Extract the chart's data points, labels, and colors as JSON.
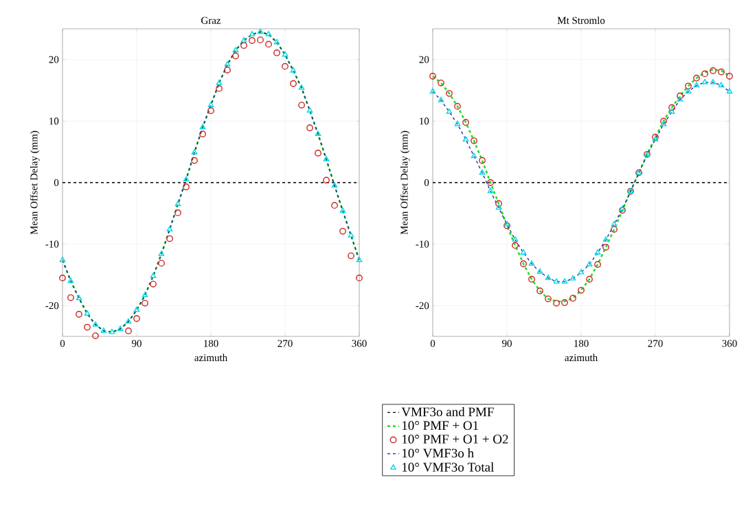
{
  "chart_data": [
    {
      "type": "line",
      "title": "Graz",
      "xlabel": "azimuth",
      "ylabel": "Mean Offset Delay (mm)",
      "xlim": [
        0,
        360
      ],
      "xticks": [
        0,
        90,
        180,
        270,
        360
      ],
      "ylim": [
        -25,
        25
      ],
      "yticks": [
        -20,
        -10,
        0,
        10,
        20
      ],
      "grid": true,
      "legend": "bottom",
      "ref_lines": [
        {
          "axis": "y",
          "value": 0,
          "label": "VMF3o and PMF",
          "color": "#000000",
          "line_style": "dashed"
        }
      ],
      "x": [
        0,
        10,
        20,
        30,
        40,
        50,
        60,
        70,
        80,
        90,
        100,
        110,
        120,
        130,
        140,
        150,
        160,
        170,
        180,
        190,
        200,
        210,
        220,
        230,
        240,
        250,
        260,
        270,
        280,
        290,
        300,
        310,
        320,
        330,
        340,
        350,
        360
      ],
      "series": [
        {
          "name": "10° PMF + O1",
          "line_style": "dashed",
          "color": "#22dd22",
          "values": [
            -12.6,
            -16.0,
            -18.8,
            -21.3,
            -23.1,
            -24.1,
            -24.3,
            -23.8,
            -22.6,
            -20.7,
            -18.3,
            -15.2,
            -11.6,
            -7.6,
            -3.5,
            0.5,
            4.9,
            9.0,
            12.6,
            16.2,
            19.2,
            21.5,
            23.1,
            24.1,
            24.5,
            24.1,
            22.8,
            20.8,
            18.2,
            15.4,
            11.7,
            7.9,
            3.8,
            -0.5,
            -4.6,
            -8.6,
            -12.6
          ]
        },
        {
          "name": "10° PMF + O1 + O2",
          "type": "scatter",
          "marker": "circle",
          "color": "#cc2222",
          "values": [
            -15.5,
            -18.7,
            -21.4,
            -23.5,
            -24.9,
            null,
            null,
            null,
            -24.1,
            -22.1,
            -19.6,
            -16.5,
            -13.1,
            -9.1,
            -4.9,
            -0.7,
            3.6,
            7.9,
            11.7,
            15.3,
            18.3,
            20.6,
            22.3,
            23.1,
            23.2,
            22.5,
            21.1,
            18.9,
            16.1,
            12.6,
            8.9,
            4.8,
            0.4,
            -3.7,
            -7.9,
            -11.9,
            -15.5
          ]
        },
        {
          "name": "10° VMF3o h",
          "line_style": "dashed",
          "color": "#1a1aa0",
          "values": [
            -12.6,
            -16.0,
            -18.8,
            -21.3,
            -23.1,
            -24.1,
            -24.3,
            -23.8,
            -22.6,
            -20.7,
            -18.3,
            -15.2,
            -11.6,
            -7.6,
            -3.5,
            0.5,
            4.9,
            9.0,
            12.6,
            16.2,
            19.2,
            21.5,
            23.1,
            24.1,
            24.5,
            24.1,
            22.8,
            20.8,
            18.2,
            15.4,
            11.7,
            7.9,
            3.8,
            -0.5,
            -4.6,
            -8.6,
            -12.6
          ]
        },
        {
          "name": "10° VMF3o Total",
          "type": "scatter",
          "marker": "triangle",
          "color": "#00d8e8",
          "values": [
            -12.6,
            -16.0,
            -18.8,
            -21.3,
            -23.1,
            -24.1,
            -24.3,
            -23.8,
            -22.6,
            -20.7,
            -18.3,
            -15.2,
            -11.6,
            -7.6,
            -3.5,
            0.5,
            4.9,
            9.0,
            12.6,
            16.2,
            19.2,
            21.5,
            23.1,
            24.1,
            24.5,
            24.1,
            22.8,
            20.8,
            18.2,
            15.4,
            11.7,
            7.9,
            3.8,
            -0.5,
            -4.6,
            -8.6,
            -12.6
          ]
        }
      ]
    },
    {
      "type": "line",
      "title": "Mt Stromlo",
      "xlabel": "azimuth",
      "ylabel": "Mean Offset Delay (mm)",
      "xlim": [
        0,
        360
      ],
      "xticks": [
        0,
        90,
        180,
        270,
        360
      ],
      "ylim": [
        -25,
        25
      ],
      "yticks": [
        -20,
        -10,
        0,
        10,
        20
      ],
      "grid": true,
      "ref_lines": [
        {
          "axis": "y",
          "value": 0,
          "color": "#000000",
          "line_style": "dashed"
        }
      ],
      "x": [
        0,
        10,
        20,
        30,
        40,
        50,
        60,
        70,
        80,
        90,
        100,
        110,
        120,
        130,
        140,
        150,
        160,
        170,
        180,
        190,
        200,
        210,
        220,
        230,
        240,
        250,
        260,
        270,
        280,
        290,
        300,
        310,
        320,
        330,
        340,
        350,
        360
      ],
      "series": [
        {
          "line_style": "dashed",
          "color": "#22dd22",
          "values": [
            17.3,
            16.2,
            14.5,
            12.4,
            9.8,
            6.8,
            3.6,
            0.0,
            -3.4,
            -7.0,
            -10.2,
            -13.2,
            -15.7,
            -17.6,
            -18.9,
            -19.3,
            -19.3,
            -18.8,
            -17.5,
            -15.7,
            -13.3,
            -10.5,
            -7.6,
            -4.5,
            -1.4,
            1.6,
            4.6,
            7.4,
            10.0,
            12.2,
            14.1,
            15.7,
            17.0,
            17.9,
            18.4,
            18.2,
            17.3
          ]
        },
        {
          "type": "scatter",
          "marker": "circle",
          "color": "#cc2222",
          "values": [
            17.3,
            16.2,
            14.5,
            12.4,
            9.8,
            6.8,
            3.6,
            0.0,
            -3.4,
            -7.0,
            -10.2,
            -13.2,
            -15.7,
            -17.6,
            -18.9,
            -19.6,
            -19.5,
            -18.8,
            -17.5,
            -15.7,
            -13.3,
            -10.5,
            -7.6,
            -4.5,
            -1.4,
            1.6,
            4.6,
            7.4,
            10.0,
            12.2,
            14.1,
            15.7,
            17.0,
            17.7,
            18.2,
            18.0,
            17.3
          ]
        },
        {
          "line_style": "dashed",
          "color": "#1a1aa0",
          "values": [
            14.8,
            13.4,
            11.5,
            9.5,
            7.0,
            4.3,
            1.6,
            -1.4,
            -4.1,
            -6.8,
            -9.3,
            -11.4,
            -13.2,
            -14.5,
            -15.5,
            -16.1,
            -16.1,
            -15.6,
            -14.6,
            -13.3,
            -11.4,
            -9.3,
            -6.8,
            -4.3,
            -1.4,
            1.6,
            4.5,
            7.0,
            9.5,
            11.5,
            13.5,
            14.8,
            15.8,
            16.3,
            16.3,
            15.8,
            14.8
          ]
        },
        {
          "type": "scatter",
          "marker": "triangle",
          "color": "#00d8e8",
          "values": [
            14.8,
            13.4,
            11.5,
            9.5,
            7.0,
            4.3,
            1.6,
            -1.4,
            -4.1,
            -6.8,
            -9.3,
            -11.4,
            -13.2,
            -14.5,
            -15.5,
            -16.1,
            -16.1,
            -15.6,
            -14.6,
            -13.3,
            -11.4,
            -9.3,
            -6.8,
            -4.3,
            -1.4,
            1.6,
            4.5,
            7.0,
            9.5,
            11.5,
            13.5,
            14.8,
            15.8,
            16.3,
            16.3,
            15.8,
            14.8
          ]
        }
      ]
    }
  ]
}
